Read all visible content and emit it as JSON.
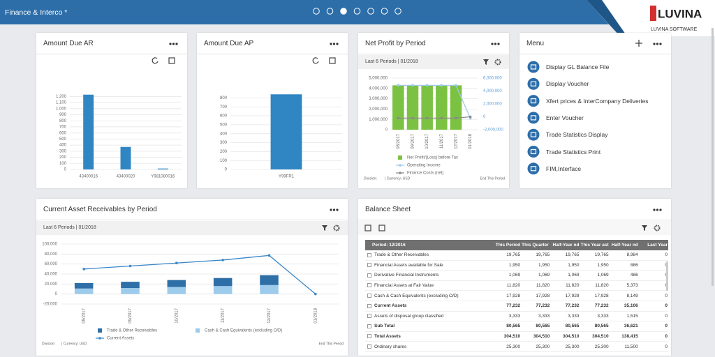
{
  "header": {
    "title": "Finance & Interco *",
    "logo": "LUVINA",
    "logo_sub": "LUVINA SOFTWARE"
  },
  "chart_data": [
    {
      "type": "bar",
      "title": "Amount Due AR",
      "categories": [
        "43400016",
        "43400020",
        "Y981080016"
      ],
      "values": [
        1230,
        370,
        15
      ],
      "color": "#2f86c3",
      "ylim": [
        0,
        1250
      ],
      "yticks": [
        0,
        100,
        200,
        300,
        400,
        500,
        600,
        700,
        800,
        900,
        {
          "value": 1000,
          "label": "1,000"
        },
        {
          "value": 1100,
          "label": "1,100"
        },
        {
          "value": 1200,
          "label": "1,200"
        }
      ],
      "grid": true
    },
    {
      "type": "bar",
      "title": "Amount Due AP",
      "categories": [
        "Y99FR1"
      ],
      "values": [
        840
      ],
      "color": "#2f86c3",
      "ylim": [
        0,
        850
      ],
      "yticks": [
        0,
        100,
        200,
        300,
        400,
        500,
        600,
        700,
        800
      ],
      "grid": true
    },
    {
      "type": "combo",
      "title": "Net Profit by Period",
      "subtitle": "Last 6 Periods | 01/2018",
      "categories": [
        "08/2017",
        "09/2017",
        "10/2017",
        "11/2017",
        "12/2017",
        "01/2018"
      ],
      "series": [
        {
          "name": "Net Profit/(Loss) before Tax",
          "type": "bar",
          "color": "#7cc242",
          "values": [
            4300000,
            4300000,
            4300000,
            4300000,
            4300000,
            0
          ]
        },
        {
          "name": "Operating Income",
          "type": "line",
          "color": "#9fc9ea",
          "values": [
            4300000,
            4300000,
            4300000,
            4300000,
            4300000,
            1100000
          ]
        },
        {
          "name": "Finance Costs (net)",
          "type": "line",
          "color": "#8a8a8a",
          "axis": "y2",
          "values": [
            -200000,
            -200000,
            -200000,
            -200000,
            -200000,
            0
          ]
        }
      ],
      "ylim": [
        0,
        5000000
      ],
      "yticks": [
        0,
        {
          "value": 1000000,
          "label": "1,000,000"
        },
        {
          "value": 2000000,
          "label": "2,000,000"
        },
        {
          "value": 3000000,
          "label": "3,000,000"
        },
        {
          "value": 4000000,
          "label": "4,000,000"
        },
        {
          "value": 5000000,
          "label": "5,000,000"
        }
      ],
      "y2lim": [
        -2000000,
        6000000
      ],
      "y2ticks": [
        {
          "value": -2000000,
          "label": "-2,000,000"
        },
        0,
        {
          "value": 2000000,
          "label": "2,000,000"
        },
        {
          "value": 4000000,
          "label": "4,000,000"
        },
        {
          "value": 6000000,
          "label": "6,000,000"
        }
      ],
      "grid": true,
      "footer": [
        "Division:",
        "| Currency: USD",
        "End This Period"
      ]
    },
    {
      "type": "combo",
      "title": "Current Asset Receivables by Period",
      "subtitle": "Last 6 Periods | 01/2018",
      "stacked": true,
      "categories": [
        "08/2017",
        "09/2017",
        "10/2017",
        "11/2017",
        "12/2017",
        "01/2018"
      ],
      "series": [
        {
          "name": "Trade & Other Receivables",
          "type": "bar",
          "color": "#2e6fa7",
          "values": [
            11000,
            12500,
            14000,
            16000,
            19765,
            0
          ]
        },
        {
          "name": "Cash & Cash Equivalents (excluding O/D)",
          "type": "bar",
          "color": "#9dcbec",
          "values": [
            11000,
            12000,
            14000,
            16000,
            17928,
            0
          ]
        },
        {
          "name": "Current Assets",
          "type": "line",
          "color": "#3a87c8",
          "values": [
            50000,
            56000,
            62000,
            68000,
            77232,
            0
          ]
        }
      ],
      "ylim": [
        -20000,
        100000
      ],
      "yticks": [
        {
          "value": -20000,
          "label": "-20,000"
        },
        0,
        {
          "value": 20000,
          "label": "20,000"
        },
        {
          "value": 40000,
          "label": "40,000"
        },
        {
          "value": 60000,
          "label": "60,000"
        },
        {
          "value": 80000,
          "label": "80,000"
        },
        {
          "value": 100000,
          "label": "100,000"
        }
      ],
      "grid": true,
      "footer": [
        "Division:",
        "| Currency: USD",
        "End This Period"
      ]
    }
  ],
  "menu": {
    "title": "Menu",
    "items": [
      "Display GL Balance File",
      "Display Voucher",
      "Xfert prices & InterCompany Deliveries",
      "Enter Voucher",
      "Trade Statistics Display",
      "Trade Statistics Print",
      "FIM,Interface"
    ]
  },
  "balance_sheet": {
    "title": "Balance Sheet",
    "columns": [
      "Period: 12/2016",
      "This Period",
      "This Quarter his",
      "Half-Year nd",
      "This Year ast",
      "Half-Year nd",
      "Last Year"
    ],
    "rows": [
      {
        "label": "Trade & Other Receivables",
        "values": [
          "19,765",
          "19,765",
          "19,765",
          "19,765",
          "8,984",
          "0"
        ],
        "bold": false
      },
      {
        "label": "Financial Assets available for Sale",
        "values": [
          "1,950",
          "1,950",
          "1,950",
          "1,950",
          "886",
          "0"
        ],
        "bold": false
      },
      {
        "label": "Derivative Financial Instruments",
        "values": [
          "1,069",
          "1,069",
          "1,069",
          "1,069",
          "486",
          "0"
        ],
        "bold": false
      },
      {
        "label": "Financial Assets at Fair Value",
        "values": [
          "11,820",
          "11,820",
          "11,820",
          "11,820",
          "5,373",
          "0"
        ],
        "bold": false
      },
      {
        "label": "Cash & Cash Equivalents (excluding O/D)",
        "values": [
          "17,928",
          "17,928",
          "17,928",
          "17,928",
          "8,149",
          "0"
        ],
        "bold": false
      },
      {
        "label": "Current Assets",
        "values": [
          "77,232",
          "77,232",
          "77,232",
          "77,232",
          "35,106",
          "0"
        ],
        "bold": true
      },
      {
        "label": "Assets of disposal group classified",
        "values": [
          "3,333",
          "3,333",
          "3,333",
          "3,333",
          "1,515",
          "0"
        ],
        "bold": false
      },
      {
        "label": "Sub Total",
        "values": [
          "80,565",
          "80,565",
          "80,565",
          "80,565",
          "36,621",
          "0"
        ],
        "bold": true
      },
      {
        "label": "Total Assets",
        "values": [
          "304,510",
          "304,510",
          "304,510",
          "304,510",
          "138,415",
          "0"
        ],
        "bold": true
      },
      {
        "label": "Ordinary shares",
        "values": [
          "25,300",
          "25,300",
          "25,300",
          "25,300",
          "11,500",
          "0"
        ],
        "bold": false
      }
    ]
  }
}
